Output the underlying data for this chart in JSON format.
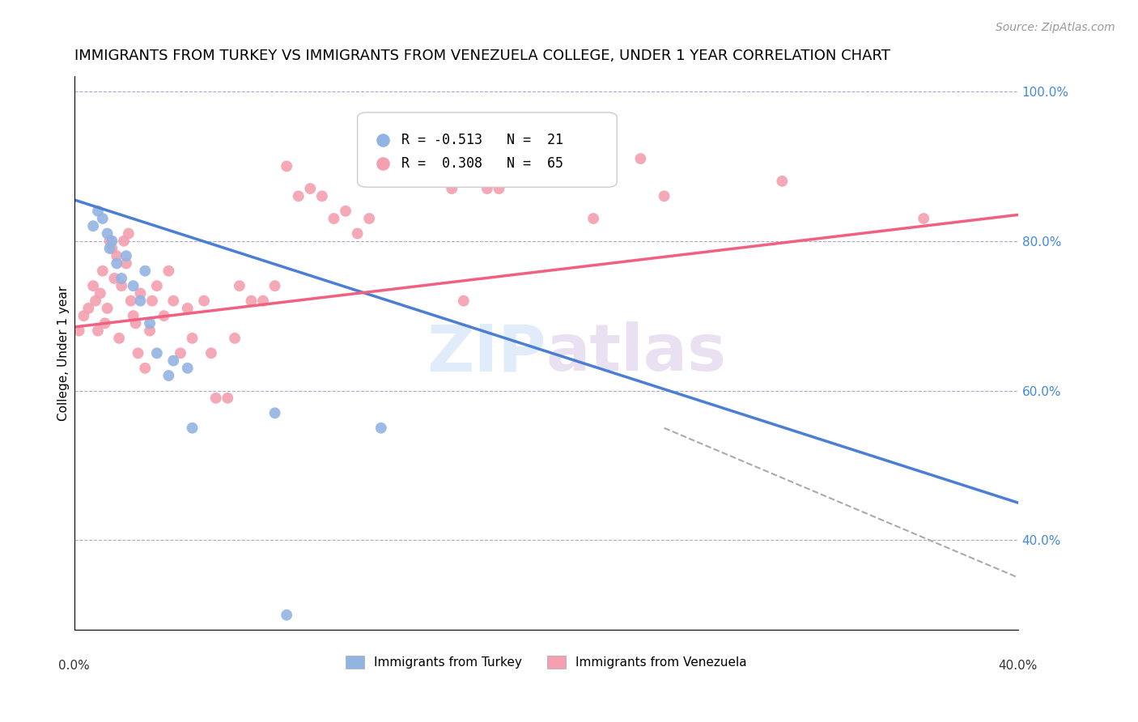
{
  "title": "IMMIGRANTS FROM TURKEY VS IMMIGRANTS FROM VENEZUELA COLLEGE, UNDER 1 YEAR CORRELATION CHART",
  "source": "Source: ZipAtlas.com",
  "ylabel": "College, Under 1 year",
  "right_yticks": [
    40.0,
    60.0,
    80.0,
    100.0
  ],
  "xmin": 0.0,
  "xmax": 0.4,
  "ymin": 0.28,
  "ymax": 1.02,
  "turkey_color": "#92b4e3",
  "venezuela_color": "#f4a0b0",
  "trendline_turkey_color": "#4a7fd4",
  "trendline_venezuela_color": "#f06080",
  "watermark_zip": "ZIP",
  "watermark_atlas": "atlas",
  "background_color": "#ffffff",
  "title_fontsize": 13,
  "source_fontsize": 10,
  "axis_label_fontsize": 11,
  "tick_fontsize": 11,
  "turkey_scatter": [
    [
      0.008,
      0.82
    ],
    [
      0.01,
      0.84
    ],
    [
      0.012,
      0.83
    ],
    [
      0.014,
      0.81
    ],
    [
      0.015,
      0.79
    ],
    [
      0.016,
      0.8
    ],
    [
      0.018,
      0.77
    ],
    [
      0.02,
      0.75
    ],
    [
      0.022,
      0.78
    ],
    [
      0.025,
      0.74
    ],
    [
      0.028,
      0.72
    ],
    [
      0.03,
      0.76
    ],
    [
      0.032,
      0.69
    ],
    [
      0.035,
      0.65
    ],
    [
      0.04,
      0.62
    ],
    [
      0.042,
      0.64
    ],
    [
      0.048,
      0.63
    ],
    [
      0.05,
      0.55
    ],
    [
      0.085,
      0.57
    ],
    [
      0.09,
      0.3
    ],
    [
      0.13,
      0.55
    ]
  ],
  "venezuela_scatter": [
    [
      0.002,
      0.68
    ],
    [
      0.004,
      0.7
    ],
    [
      0.006,
      0.71
    ],
    [
      0.008,
      0.74
    ],
    [
      0.009,
      0.72
    ],
    [
      0.01,
      0.68
    ],
    [
      0.011,
      0.73
    ],
    [
      0.012,
      0.76
    ],
    [
      0.013,
      0.69
    ],
    [
      0.014,
      0.71
    ],
    [
      0.015,
      0.8
    ],
    [
      0.016,
      0.79
    ],
    [
      0.017,
      0.75
    ],
    [
      0.018,
      0.78
    ],
    [
      0.019,
      0.67
    ],
    [
      0.02,
      0.74
    ],
    [
      0.021,
      0.8
    ],
    [
      0.022,
      0.77
    ],
    [
      0.023,
      0.81
    ],
    [
      0.024,
      0.72
    ],
    [
      0.025,
      0.7
    ],
    [
      0.026,
      0.69
    ],
    [
      0.027,
      0.65
    ],
    [
      0.028,
      0.73
    ],
    [
      0.03,
      0.63
    ],
    [
      0.032,
      0.68
    ],
    [
      0.033,
      0.72
    ],
    [
      0.035,
      0.74
    ],
    [
      0.038,
      0.7
    ],
    [
      0.04,
      0.76
    ],
    [
      0.042,
      0.72
    ],
    [
      0.045,
      0.65
    ],
    [
      0.048,
      0.71
    ],
    [
      0.05,
      0.67
    ],
    [
      0.055,
      0.72
    ],
    [
      0.058,
      0.65
    ],
    [
      0.06,
      0.59
    ],
    [
      0.065,
      0.59
    ],
    [
      0.068,
      0.67
    ],
    [
      0.07,
      0.74
    ],
    [
      0.075,
      0.72
    ],
    [
      0.08,
      0.72
    ],
    [
      0.085,
      0.74
    ],
    [
      0.09,
      0.9
    ],
    [
      0.095,
      0.86
    ],
    [
      0.1,
      0.87
    ],
    [
      0.105,
      0.86
    ],
    [
      0.11,
      0.83
    ],
    [
      0.115,
      0.84
    ],
    [
      0.12,
      0.81
    ],
    [
      0.125,
      0.83
    ],
    [
      0.13,
      0.92
    ],
    [
      0.16,
      0.87
    ],
    [
      0.165,
      0.72
    ],
    [
      0.17,
      0.94
    ],
    [
      0.175,
      0.87
    ],
    [
      0.18,
      0.87
    ],
    [
      0.185,
      0.95
    ],
    [
      0.19,
      0.89
    ],
    [
      0.2,
      0.91
    ],
    [
      0.22,
      0.83
    ],
    [
      0.24,
      0.91
    ],
    [
      0.25,
      0.86
    ],
    [
      0.3,
      0.88
    ],
    [
      0.36,
      0.83
    ]
  ],
  "turkey_trendline": [
    [
      0.0,
      0.855
    ],
    [
      0.4,
      0.45
    ]
  ],
  "venezuela_trendline": [
    [
      0.0,
      0.685
    ],
    [
      0.4,
      0.835
    ]
  ],
  "ref_line": [
    [
      0.25,
      0.55
    ],
    [
      0.4,
      0.35
    ]
  ]
}
